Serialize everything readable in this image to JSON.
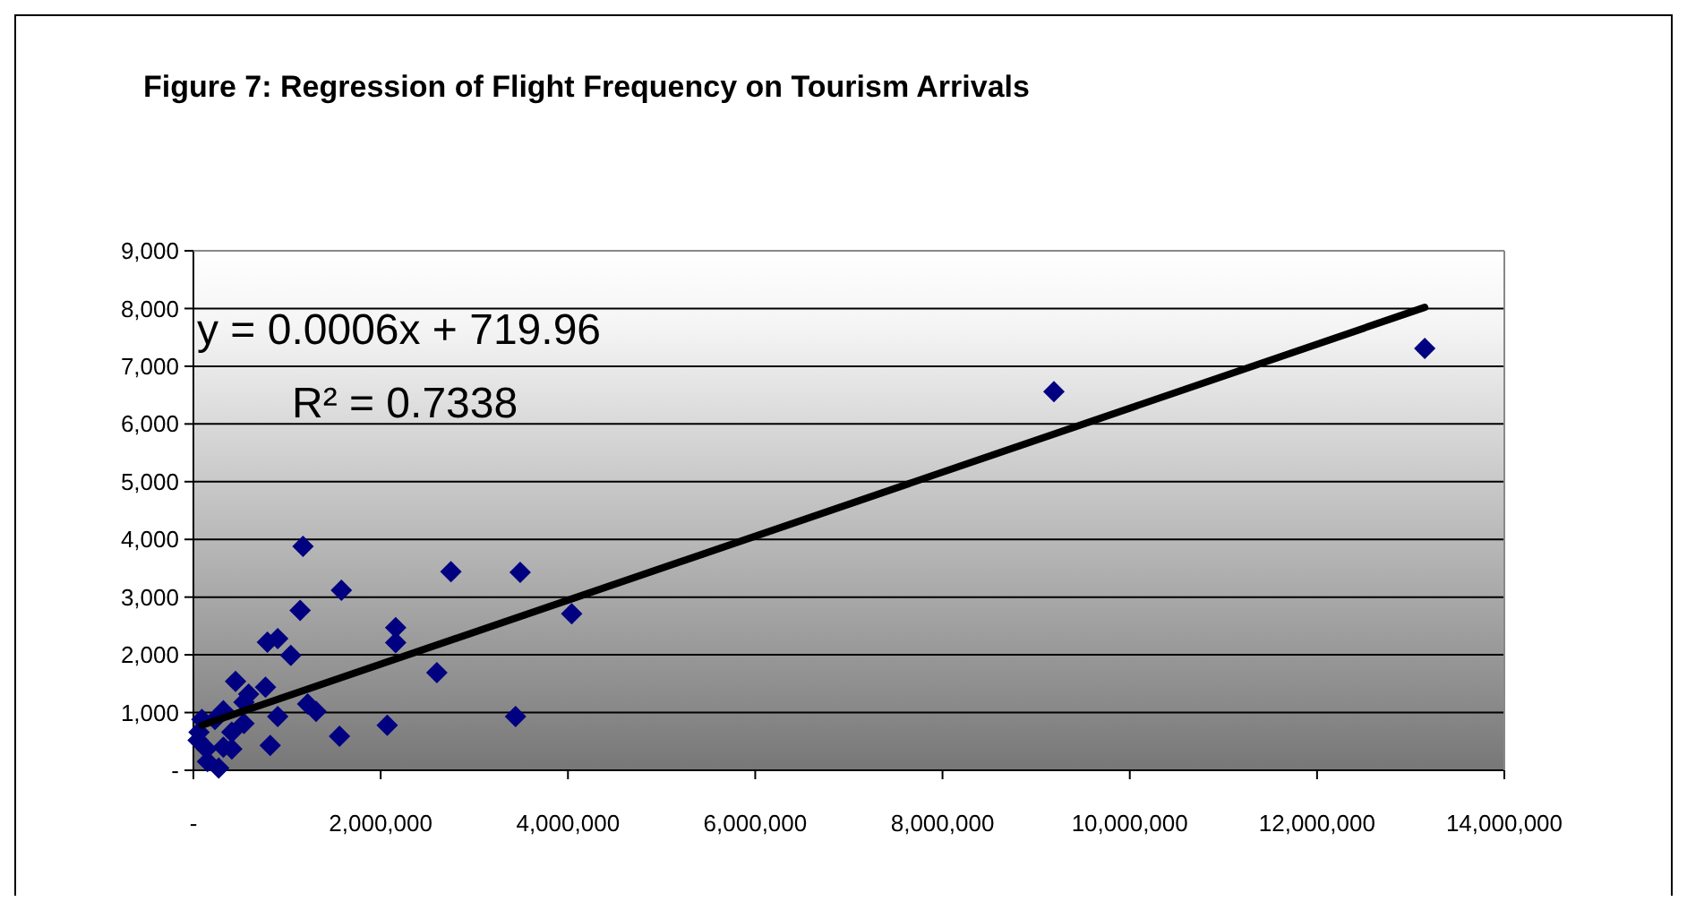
{
  "chart_data": {
    "type": "scatter",
    "title": "Figure 7: Regression of Flight Frequency on Tourism Arrivals",
    "annotations": [
      "y = 0.0006x + 719.96",
      "R² = 0.7338"
    ],
    "xlim": [
      0,
      14000000
    ],
    "ylim": [
      0,
      9000
    ],
    "xticks": [
      {
        "value": 0,
        "label": "-"
      },
      {
        "value": 2000000,
        "label": "2,000,000"
      },
      {
        "value": 4000000,
        "label": "4,000,000"
      },
      {
        "value": 6000000,
        "label": "6,000,000"
      },
      {
        "value": 8000000,
        "label": "8,000,000"
      },
      {
        "value": 10000000,
        "label": "10,000,000"
      },
      {
        "value": 12000000,
        "label": "12,000,000"
      },
      {
        "value": 14000000,
        "label": "14,000,000"
      }
    ],
    "yticks": [
      {
        "value": 0,
        "label": "-"
      },
      {
        "value": 1000,
        "label": "1,000"
      },
      {
        "value": 2000,
        "label": "2,000"
      },
      {
        "value": 3000,
        "label": "3,000"
      },
      {
        "value": 4000,
        "label": "4,000"
      },
      {
        "value": 5000,
        "label": "5,000"
      },
      {
        "value": 6000,
        "label": "6,000"
      },
      {
        "value": 7000,
        "label": "7,000"
      },
      {
        "value": 8000,
        "label": "8,000"
      },
      {
        "value": 9000,
        "label": "9,000"
      }
    ],
    "grid": "y",
    "marker": "diamond",
    "series": [
      {
        "color": "#000080",
        "x": [
          13150000,
          9190000,
          4040000,
          3490000,
          3440000,
          2750000,
          2600000,
          2160000,
          2160000,
          2070000,
          1580000,
          1560000,
          1310000,
          1220000,
          1170000,
          1140000,
          1040000,
          900000,
          790000,
          900000,
          820000,
          770000,
          590000,
          540000,
          450000,
          540000,
          410000,
          320000,
          230000,
          90000,
          60000,
          140000,
          320000,
          270000,
          150000,
          50000,
          410000
        ],
        "values": [
          7310,
          6560,
          2710,
          3430,
          930,
          3440,
          1690,
          2470,
          2210,
          780,
          3120,
          590,
          1020,
          1150,
          3880,
          2770,
          1990,
          2280,
          2220,
          930,
          430,
          1440,
          1320,
          1180,
          1540,
          810,
          660,
          1030,
          880,
          880,
          660,
          370,
          400,
          40,
          150,
          520,
          370
        ]
      },
      {
        "type": "line",
        "color": "#000000",
        "x": [
          90000,
          13150000
        ],
        "values": [
          780,
          8020
        ],
        "marker": "none"
      }
    ]
  }
}
